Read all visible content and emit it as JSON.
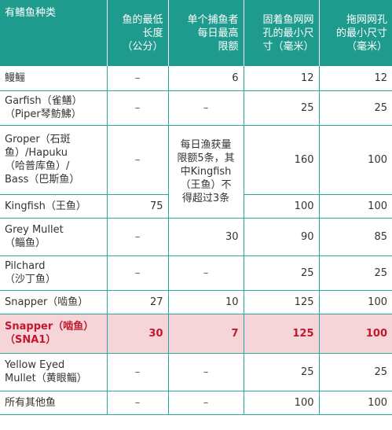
{
  "headers": [
    "有鳍鱼种类",
    "鱼的最低长度（公分）",
    "单个捕鱼者每日最高限额",
    "固着鱼网网孔的最小尺寸（毫米）",
    "拖网网孔的最小尺寸（毫米）"
  ],
  "header_lines": [
    [
      "有鳍鱼种类"
    ],
    [
      "鱼的最低",
      "长度度",
      "（公分）"
    ],
    [
      "单个捕鱼者",
      "每日最高",
      "限额"
    ],
    [
      "固着鱼网网",
      "孔的最小尺",
      "寸（毫米）"
    ],
    [
      "拖网网孔",
      "的最小尺寸",
      "（毫米）"
    ]
  ],
  "rows": [
    {
      "name": "鳗鲡",
      "min_len": "–",
      "limit": "6",
      "set_net": "12",
      "drag_net": "12"
    },
    {
      "name": "Garfish（雀鳝）（Piper琴鲂鮄）",
      "min_len": "–",
      "limit": "–",
      "set_net": "25",
      "drag_net": "25"
    },
    {
      "name": "Groper（石斑鱼）/Hapuku（哈普库鱼）/ Bass（巴斯鱼）",
      "min_len": "–",
      "limit": "",
      "set_net": "160",
      "drag_net": "100"
    },
    {
      "name": "Kingfish（王鱼）",
      "min_len": "75",
      "limit": "",
      "set_net": "100",
      "drag_net": "100"
    },
    {
      "name": "Grey Mullet（鲻鱼）",
      "min_len": "–",
      "limit": "30",
      "set_net": "90",
      "drag_net": "85"
    },
    {
      "name": "Pilchard（沙丁鱼）",
      "min_len": "–",
      "limit": "–",
      "set_net": "25",
      "drag_net": "25"
    },
    {
      "name": "Snapper（啮鱼）",
      "min_len": "27",
      "limit": "10",
      "set_net": "125",
      "drag_net": "100"
    },
    {
      "name": "Snapper（啮鱼）（SNA1）",
      "min_len": "30",
      "limit": "7",
      "set_net": "125",
      "drag_net": "100"
    },
    {
      "name": "Yellow Eyed Mullet（黄眼鲻）",
      "min_len": "–",
      "limit": "–",
      "set_net": "25",
      "drag_net": "25"
    },
    {
      "name": "所有其他鱼",
      "min_len": "–",
      "limit": "–",
      "set_net": "100",
      "drag_net": "100"
    }
  ],
  "shared_note": "每日渔获量限额5条，其中Kingfish（王鱼）不得超过3条",
  "colors": {
    "header_bg": "#1e9b8c",
    "highlight_bg": "#f6d5d9",
    "highlight_text": "#c0182e",
    "rule": "#2aa89a"
  }
}
